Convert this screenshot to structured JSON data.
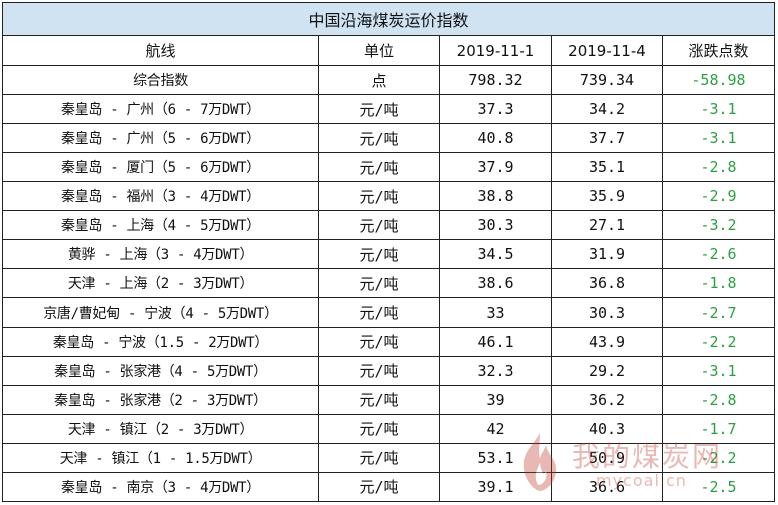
{
  "title": "中国沿海煤炭运价指数",
  "columns": [
    "航线",
    "单位",
    "2019-11-1",
    "2019-11-4",
    "涨跌点数"
  ],
  "rows": [
    {
      "route": "综合指数",
      "unit": "点",
      "v1": "798.32",
      "v2": "739.34",
      "change": "-58.98"
    },
    {
      "route": "秦皇岛 - 广州（6 - 7万DWT）",
      "unit": "元/吨",
      "v1": "37.3",
      "v2": "34.2",
      "change": "-3.1"
    },
    {
      "route": "秦皇岛 - 广州（5 - 6万DWT）",
      "unit": "元/吨",
      "v1": "40.8",
      "v2": "37.7",
      "change": "-3.1"
    },
    {
      "route": "秦皇岛 - 厦门（5 - 6万DWT）",
      "unit": "元/吨",
      "v1": "37.9",
      "v2": "35.1",
      "change": "-2.8"
    },
    {
      "route": "秦皇岛 - 福州（3 - 4万DWT）",
      "unit": "元/吨",
      "v1": "38.8",
      "v2": "35.9",
      "change": "-2.9"
    },
    {
      "route": "秦皇岛 - 上海（4 - 5万DWT）",
      "unit": "元/吨",
      "v1": "30.3",
      "v2": "27.1",
      "change": "-3.2"
    },
    {
      "route": "黄骅 - 上海（3 - 4万DWT）",
      "unit": "元/吨",
      "v1": "34.5",
      "v2": "31.9",
      "change": "-2.6"
    },
    {
      "route": "天津 - 上海（2 - 3万DWT）",
      "unit": "元/吨",
      "v1": "38.6",
      "v2": "36.8",
      "change": "-1.8"
    },
    {
      "route": "京唐/曹妃甸 - 宁波（4 - 5万DWT）",
      "unit": "元/吨",
      "v1": "33",
      "v2": "30.3",
      "change": "-2.7"
    },
    {
      "route": "秦皇岛 - 宁波（1.5 - 2万DWT）",
      "unit": "元/吨",
      "v1": "46.1",
      "v2": "43.9",
      "change": "-2.2"
    },
    {
      "route": "秦皇岛 - 张家港（4 - 5万DWT）",
      "unit": "元/吨",
      "v1": "32.3",
      "v2": "29.2",
      "change": "-3.1"
    },
    {
      "route": "秦皇岛 - 张家港（2 - 3万DWT）",
      "unit": "元/吨",
      "v1": "39",
      "v2": "36.2",
      "change": "-2.8"
    },
    {
      "route": "天津 - 镇江（2 - 3万DWT）",
      "unit": "元/吨",
      "v1": "42",
      "v2": "40.3",
      "change": "-1.7"
    },
    {
      "route": "天津 - 镇江（1 - 1.5万DWT）",
      "unit": "元/吨",
      "v1": "53.1",
      "v2": "50.9",
      "change": "-2.2"
    },
    {
      "route": "秦皇岛 - 南京（3 - 4万DWT）",
      "unit": "元/吨",
      "v1": "39.1",
      "v2": "36.6",
      "change": "-2.5"
    }
  ],
  "watermark": {
    "text": "我的煤炭网",
    "url": "mycoal.cn"
  },
  "colors": {
    "title_bg": "#cfe3f3",
    "negative": "#2e9e44",
    "border": "#222222"
  }
}
